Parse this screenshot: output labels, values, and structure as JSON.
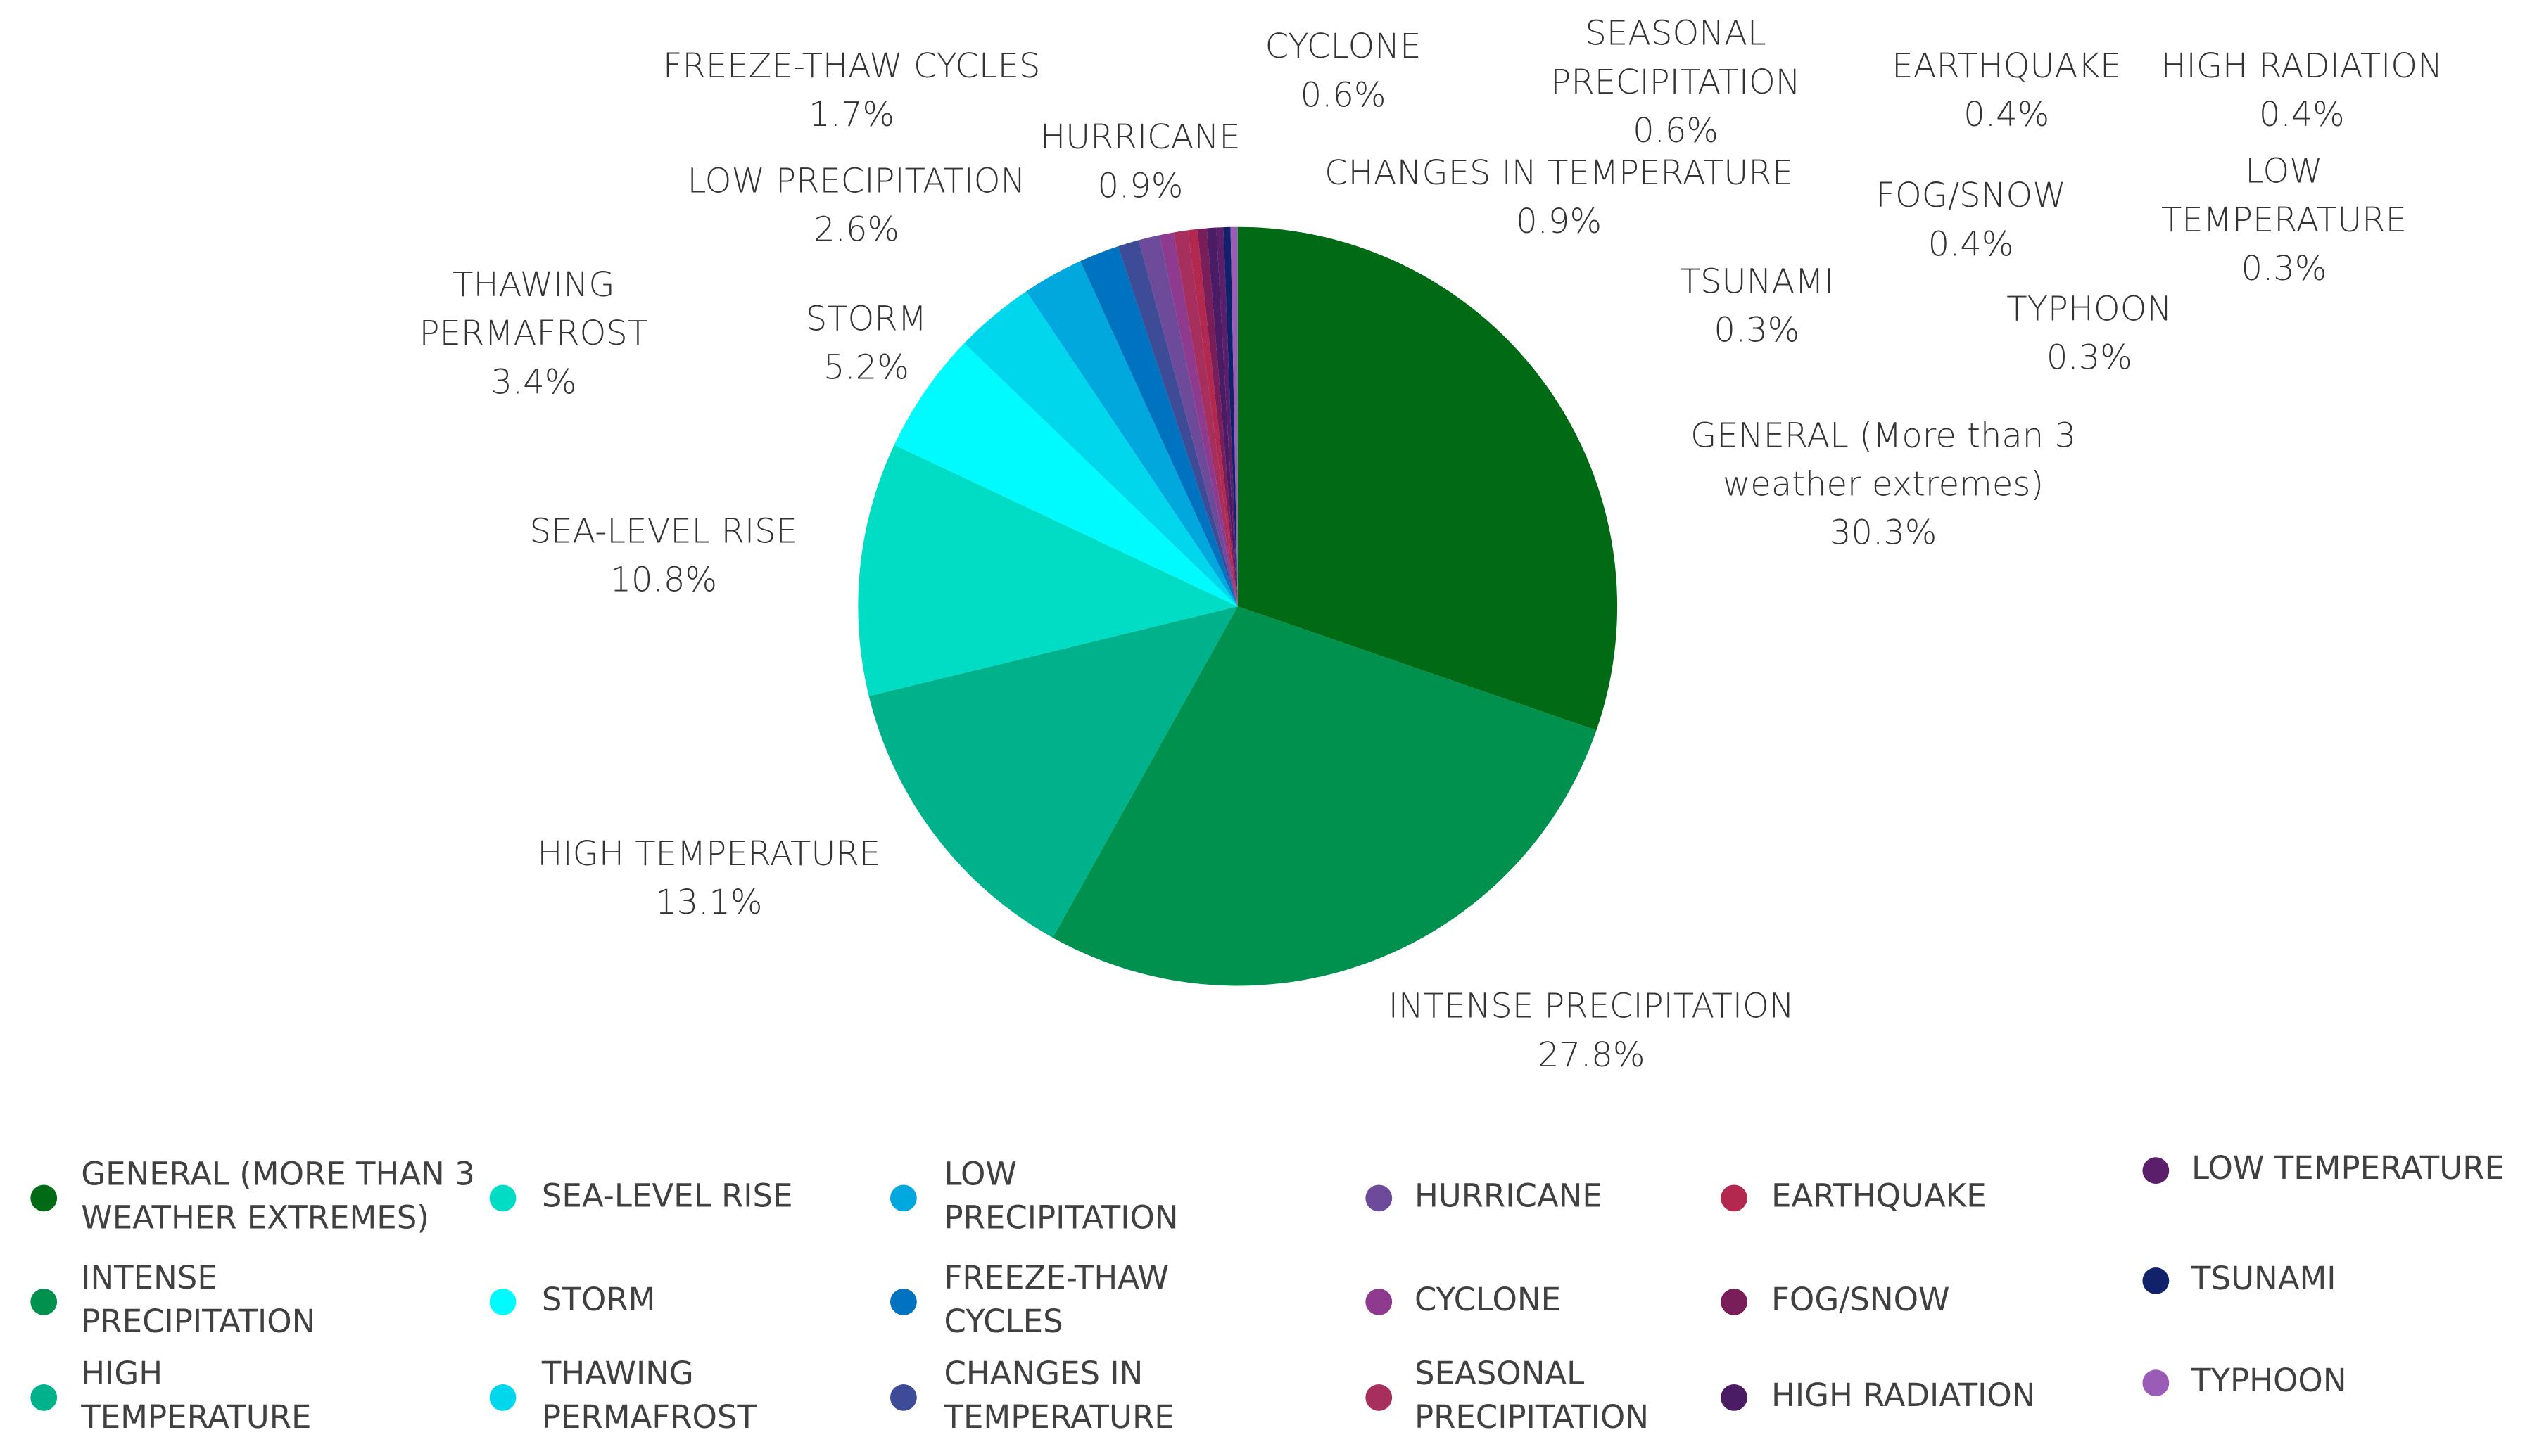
{
  "chart_data": {
    "type": "pie",
    "title": "",
    "slices": [
      {
        "label_lines": [
          "GENERAL (More than 3",
          "weather extremes)"
        ],
        "value_text": "30.3%",
        "value": 30.3,
        "color": "#006B14"
      },
      {
        "label_lines": [
          "INTENSE PRECIPITATION"
        ],
        "value_text": "27.8%",
        "value": 27.8,
        "color": "#00914E"
      },
      {
        "label_lines": [
          "HIGH TEMPERATURE"
        ],
        "value_text": "13.1%",
        "value": 13.1,
        "color": "#00B28C"
      },
      {
        "label_lines": [
          "SEA-LEVEL RISE"
        ],
        "value_text": "10.8%",
        "value": 10.8,
        "color": "#00DDC4"
      },
      {
        "label_lines": [
          "STORM"
        ],
        "value_text": "5.2%",
        "value": 5.2,
        "color": "#00FBFF"
      },
      {
        "label_lines": [
          "THAWING",
          "PERMAFROST"
        ],
        "value_text": "3.4%",
        "value": 3.4,
        "color": "#00D6EC"
      },
      {
        "label_lines": [
          "LOW PRECIPITATION"
        ],
        "value_text": "2.6%",
        "value": 2.6,
        "color": "#00A8DE"
      },
      {
        "label_lines": [
          "FREEZE-THAW CYCLES"
        ],
        "value_text": "1.7%",
        "value": 1.7,
        "color": "#0073C0"
      },
      {
        "label_lines": [
          "CHANGES IN TEMPERATURE"
        ],
        "value_text": "0.9%",
        "value": 0.9,
        "color": "#3E4B96"
      },
      {
        "label_lines": [
          "HURRICANE"
        ],
        "value_text": "0.9%",
        "value": 0.9,
        "color": "#6E4A9A"
      },
      {
        "label_lines": [
          "CYCLONE"
        ],
        "value_text": "0.6%",
        "value": 0.6,
        "color": "#8E3A8E"
      },
      {
        "label_lines": [
          "SEASONAL",
          "PRECIPITATION"
        ],
        "value_text": "0.6%",
        "value": 0.6,
        "color": "#A62F5E"
      },
      {
        "label_lines": [
          "EARTHQUAKE"
        ],
        "value_text": "0.4%",
        "value": 0.4,
        "color": "#B2284E"
      },
      {
        "label_lines": [
          "FOG/SNOW"
        ],
        "value_text": "0.4%",
        "value": 0.4,
        "color": "#7A1E5A"
      },
      {
        "label_lines": [
          "HIGH RADIATION"
        ],
        "value_text": "0.4%",
        "value": 0.4,
        "color": "#4A1C66"
      },
      {
        "label_lines": [
          "LOW",
          "TEMPERATURE"
        ],
        "value_text": "0.3%",
        "value": 0.3,
        "color": "#5A1E6A"
      },
      {
        "label_lines": [
          "TSUNAMI"
        ],
        "value_text": "0.3%",
        "value": 0.3,
        "color": "#12226A"
      },
      {
        "label_lines": [
          "TYPHOON"
        ],
        "value_text": "0.3%",
        "value": 0.3,
        "color": "#9A5CB6"
      }
    ],
    "legend": {
      "placement": "bottom",
      "entries": [
        {
          "lines": [
            "GENERAL (MORE THAN 3",
            " WEATHER EXTREMES)"
          ],
          "color": "#006B14"
        },
        {
          "lines": [
            "INTENSE",
            "PRECIPITATION"
          ],
          "color": "#00914E"
        },
        {
          "lines": [
            "HIGH",
            "TEMPERATURE"
          ],
          "color": "#00B28C"
        },
        {
          "lines": [
            "SEA-LEVEL RISE"
          ],
          "color": "#00DDC4"
        },
        {
          "lines": [
            "STORM"
          ],
          "color": "#00FBFF"
        },
        {
          "lines": [
            "THAWING",
            "PERMAFROST"
          ],
          "color": "#00D6EC"
        },
        {
          "lines": [
            "LOW",
            "PRECIPITATION"
          ],
          "color": "#00A8DE"
        },
        {
          "lines": [
            "FREEZE-THAW",
            "CYCLES"
          ],
          "color": "#0073C0"
        },
        {
          "lines": [
            "CHANGES IN",
            "TEMPERATURE"
          ],
          "color": "#3E4B96"
        },
        {
          "lines": [
            "HURRICANE"
          ],
          "color": "#6E4A9A"
        },
        {
          "lines": [
            "CYCLONE"
          ],
          "color": "#8E3A8E"
        },
        {
          "lines": [
            "SEASONAL",
            "PRECIPITATION"
          ],
          "color": "#A62F5E"
        },
        {
          "lines": [
            "EARTHQUAKE"
          ],
          "color": "#B2284E"
        },
        {
          "lines": [
            "FOG/SNOW"
          ],
          "color": "#7A1E5A"
        },
        {
          "lines": [
            "HIGH RADIATION"
          ],
          "color": "#4A1C66"
        },
        {
          "lines": [
            "LOW TEMPERATURE"
          ],
          "color": "#5A1E6A"
        },
        {
          "lines": [
            "TSUNAMI"
          ],
          "color": "#12226A"
        },
        {
          "lines": [
            "TYPHOON"
          ],
          "color": "#9A5CB6"
        }
      ]
    }
  }
}
